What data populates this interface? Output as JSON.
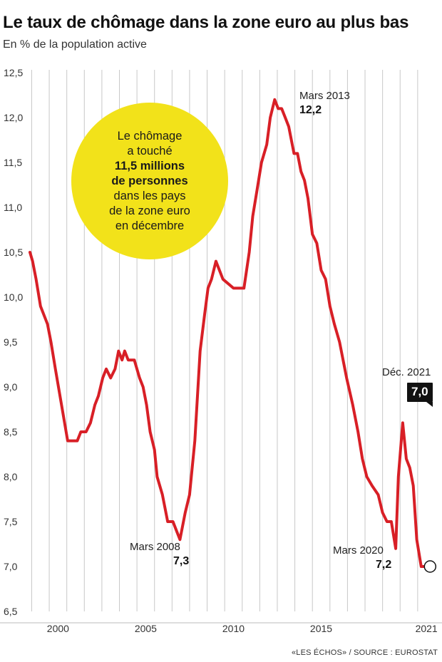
{
  "header": {
    "title": "Le taux de chômage dans la zone euro au plus bas",
    "subtitle": "En % de la population active"
  },
  "bubble": {
    "line1": "Le chômage",
    "line2": "a touché",
    "line3": "11,5 millions",
    "line4": "de personnes",
    "line5": "dans les pays",
    "line6": "de la zone euro",
    "line7": "en décembre"
  },
  "annotations": {
    "mars2013_label": "Mars 2013",
    "mars2013_value": "12,2",
    "mars2008_label": "Mars 2008",
    "mars2008_value": "7,3",
    "mars2020_label": "Mars 2020",
    "mars2020_value": "7,2",
    "dec2021_label": "Déc. 2021",
    "dec2021_value": "7,0"
  },
  "source": "«LES ÉCHOS» / SOURCE : EUROSTAT",
  "colors": {
    "line": "#d81f26",
    "highlight": "#f2e21a",
    "grid": "#c8c8c8"
  },
  "chart_data": {
    "type": "line",
    "title": "Le taux de chômage dans la zone euro au plus bas",
    "ylabel": "En % de la population active",
    "ylim": [
      6.5,
      12.5
    ],
    "xlim": [
      1998.9,
      2021.9
    ],
    "yticks": [
      6.5,
      7.0,
      7.5,
      8.0,
      8.5,
      9.0,
      9.5,
      10.0,
      10.5,
      11.0,
      11.5,
      12.0,
      12.5
    ],
    "ytick_labels": [
      "6,5",
      "7,0",
      "7,5",
      "8,0",
      "8,5",
      "9,0",
      "9,5",
      "10,0",
      "10,5",
      "11,0",
      "11,5",
      "12,0",
      "12,5"
    ],
    "xticks": [
      2000,
      2005,
      2010,
      2015,
      2021
    ],
    "xtick_labels": [
      "2000",
      "2005",
      "2010",
      "2015",
      "2021"
    ],
    "xgrid_years": [
      1999,
      2000,
      2001,
      2002,
      2003,
      2004,
      2005,
      2006,
      2007,
      2008,
      2009,
      2010,
      2011,
      2012,
      2013,
      2014,
      2015,
      2016,
      2017,
      2018,
      2019,
      2020,
      2021
    ],
    "grid": "vertical",
    "series": [
      {
        "x": [
          1998.9,
          1999.05,
          1999.25,
          1999.5,
          1999.9,
          2000.1,
          2000.35,
          2000.7,
          2001.05,
          2001.35,
          2001.6,
          2001.8,
          2002.1,
          2002.35,
          2002.6,
          2002.8,
          2003.05,
          2003.25,
          2003.5,
          2003.75,
          2003.95,
          2004.15,
          2004.3,
          2004.5,
          2004.65,
          2004.85,
          2005.15,
          2005.35,
          2005.55,
          2005.75,
          2006.0,
          2006.15,
          2006.45,
          2006.75,
          2007.05,
          2007.25,
          2007.45,
          2007.75,
          2008.0,
          2008.3,
          2008.6,
          2008.85,
          2009.05,
          2009.25,
          2009.5,
          2009.9,
          2010.5,
          2011.1,
          2011.4,
          2011.6,
          2011.85,
          2012.1,
          2012.4,
          2012.6,
          2012.85,
          2013.05,
          2013.25,
          2013.45,
          2013.65,
          2013.95,
          2014.15,
          2014.35,
          2014.55,
          2014.75,
          2015.0,
          2015.25,
          2015.5,
          2015.75,
          2016.0,
          2016.25,
          2016.55,
          2016.95,
          2017.3,
          2017.6,
          2017.85,
          2018.1,
          2018.4,
          2018.75,
          2019.0,
          2019.25,
          2019.5,
          2019.75,
          2019.9,
          2020.15,
          2020.35,
          2020.55,
          2020.75,
          2020.95,
          2021.2,
          2021.5,
          2021.75
        ],
        "y": [
          10.5,
          10.4,
          10.2,
          9.9,
          9.7,
          9.5,
          9.2,
          8.8,
          8.4,
          8.4,
          8.4,
          8.5,
          8.5,
          8.6,
          8.8,
          8.9,
          9.1,
          9.2,
          9.1,
          9.2,
          9.4,
          9.3,
          9.4,
          9.3,
          9.3,
          9.3,
          9.1,
          9.0,
          8.8,
          8.5,
          8.3,
          8.0,
          7.8,
          7.5,
          7.5,
          7.4,
          7.3,
          7.6,
          7.8,
          8.4,
          9.4,
          9.8,
          10.1,
          10.2,
          10.4,
          10.2,
          10.1,
          10.1,
          10.5,
          10.9,
          11.2,
          11.5,
          11.7,
          12.0,
          12.2,
          12.1,
          12.1,
          12.0,
          11.9,
          11.6,
          11.6,
          11.4,
          11.3,
          11.1,
          10.7,
          10.6,
          10.3,
          10.2,
          9.9,
          9.7,
          9.5,
          9.1,
          8.8,
          8.5,
          8.2,
          8.0,
          7.9,
          7.8,
          7.6,
          7.5,
          7.5,
          7.2,
          8.0,
          8.6,
          8.2,
          8.1,
          7.9,
          7.3,
          7.0,
          7.0,
          7.0
        ]
      }
    ],
    "annotations": [
      {
        "label": "Mars 2013",
        "x": 2013.2,
        "y": 12.2
      },
      {
        "label": "Mars 2008",
        "x": 2008.2,
        "y": 7.3
      },
      {
        "label": "Mars 2020",
        "x": 2020.2,
        "y": 7.2
      },
      {
        "label": "Déc. 2021",
        "x": 2021.9,
        "y": 7.0
      }
    ]
  }
}
